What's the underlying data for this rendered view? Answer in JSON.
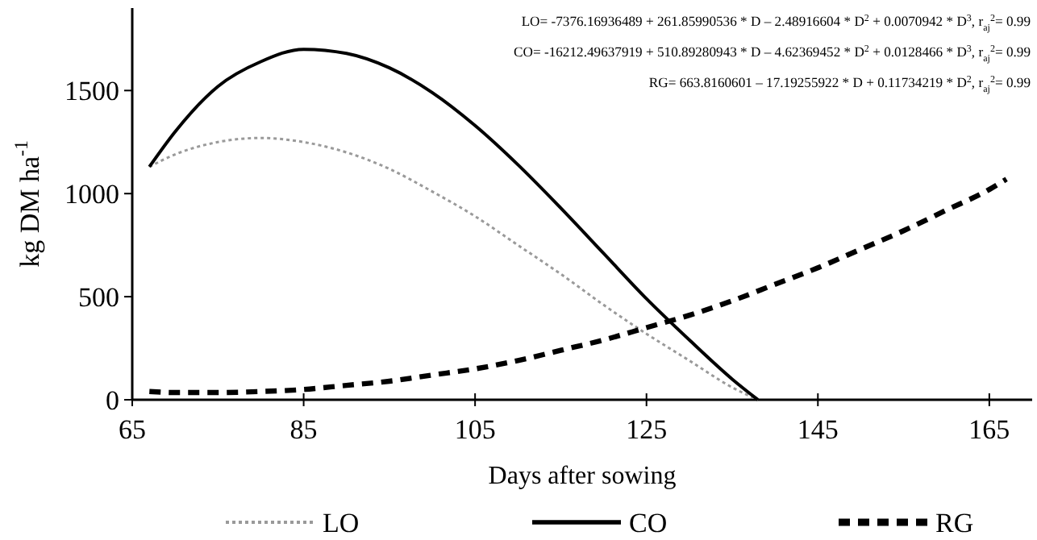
{
  "chart_data": {
    "type": "line",
    "xlabel": "Days after sowing",
    "ylabel": "kg DM ha$^{-1}$",
    "xlim": [
      65,
      170
    ],
    "xticks": [
      65,
      85,
      105,
      125,
      145,
      165
    ],
    "ylim": [
      0,
      1900
    ],
    "yticks": [
      0,
      500,
      1000,
      1500
    ],
    "grid": false,
    "legend": "bottom",
    "marker": "none",
    "annotations": [
      "LO= -7376.16936489 + 261.85990536 * D – 2.48916604 * D$^{2}$ + 0.0070942 * D$^{3}$, r$_{aj}$$^{2}$= 0.99",
      "CO= -16212.49637919 + 510.89280943 * D – 4.62369452 * D$^{2}$ + 0.0128466 * D$^{3}$, r$_{aj}$$^{2}$= 0.99",
      "RG= 663.8160601 – 17.19255922 * D + 0.11734219 * D$^{2}$, r$_{aj}$$^{2}$= 0.99"
    ],
    "series": [
      {
        "name": "LO",
        "color": "#9a9a9a",
        "line_style": "dotted",
        "x": [
          67,
          70,
          75,
          80,
          85,
          90,
          95,
          100,
          105,
          110,
          115,
          120,
          125,
          130,
          135,
          138
        ],
        "values": [
          1130,
          1190,
          1250,
          1270,
          1250,
          1200,
          1120,
          1010,
          890,
          750,
          610,
          460,
          320,
          190,
          60,
          0
        ]
      },
      {
        "name": "CO",
        "color": "#000000",
        "line_style": "solid",
        "x": [
          67,
          70,
          75,
          80,
          85,
          90,
          95,
          100,
          105,
          110,
          115,
          120,
          125,
          130,
          135,
          138
        ],
        "values": [
          1130,
          1300,
          1520,
          1640,
          1700,
          1680,
          1610,
          1490,
          1330,
          1140,
          930,
          710,
          490,
          290,
          100,
          0
        ]
      },
      {
        "name": "RG",
        "color": "#000000",
        "line_style": "dashed",
        "x": [
          67,
          70,
          75,
          80,
          85,
          90,
          95,
          100,
          105,
          110,
          115,
          120,
          125,
          130,
          135,
          140,
          145,
          150,
          155,
          160,
          165,
          167
        ],
        "values": [
          40,
          35,
          35,
          40,
          50,
          70,
          90,
          120,
          150,
          190,
          240,
          290,
          350,
          410,
          480,
          560,
          640,
          730,
          820,
          920,
          1020,
          1070
        ]
      }
    ]
  }
}
